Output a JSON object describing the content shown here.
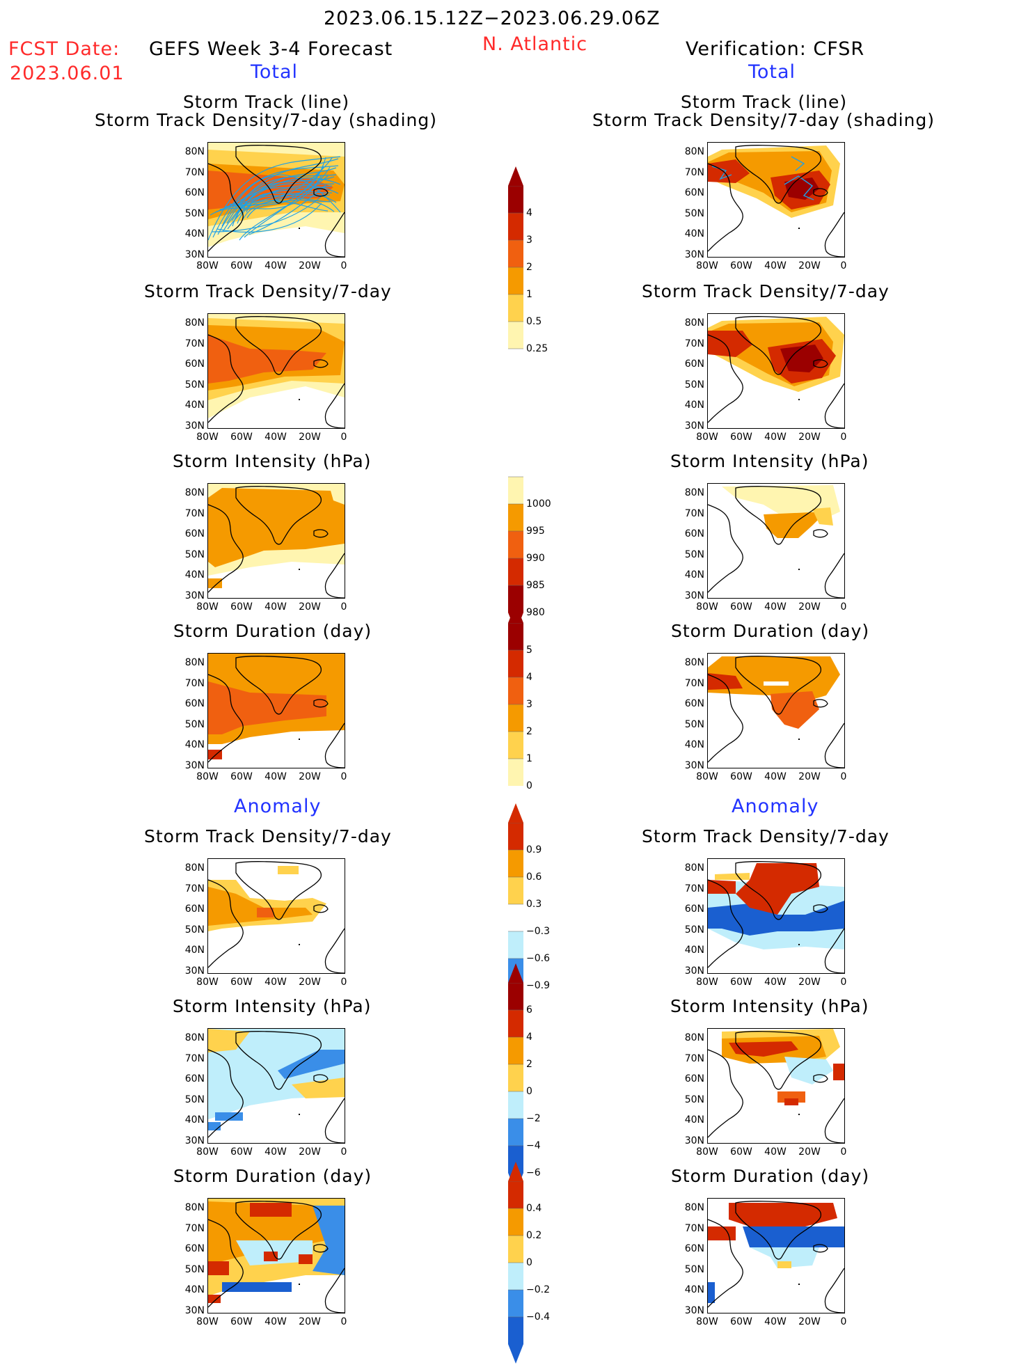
{
  "header": {
    "date_range": "2023.06.15.12Z−2023.06.29.06Z",
    "fcst_label": "FCST Date:",
    "fcst_date": "2023.06.01",
    "forecast_title": "GEFS Week 3-4 Forecast",
    "region": "N. Atlantic",
    "verification_title": "Verification: CFSR",
    "total_label": "Total",
    "anomaly_label": "Anomaly"
  },
  "panel_titles": {
    "track_line": "Storm Track (line)",
    "track_shading": "Storm Track Density/7-day (shading)",
    "density": "Storm Track Density/7-day",
    "intensity": "Storm Intensity (hPa)",
    "duration": "Storm Duration (day)"
  },
  "axes": {
    "lat_labels": [
      "80N",
      "70N",
      "60N",
      "50N",
      "40N",
      "30N"
    ],
    "lon_labels": [
      "80W",
      "60W",
      "40W",
      "20W",
      "0"
    ]
  },
  "colorbars": {
    "density": [
      "4",
      "3",
      "2",
      "1",
      "0.5",
      "0.25"
    ],
    "intensity": [
      "1000",
      "995",
      "990",
      "985",
      "980"
    ],
    "duration": [
      "5",
      "4",
      "3",
      "2",
      "1",
      "0"
    ],
    "density_anom": [
      "0.9",
      "0.6",
      "0.3",
      "−0.3",
      "−0.6",
      "−0.9"
    ],
    "intensity_anom": [
      "6",
      "4",
      "2",
      "0",
      "−2",
      "−4",
      "−6"
    ],
    "duration_anom": [
      "0.4",
      "0.2",
      "0",
      "−0.2",
      "−0.4"
    ]
  },
  "colors": {
    "title_red": "#ff2a2a",
    "label_blue": "#2233ff",
    "yellow_light": "#fff5b0",
    "yellow": "#ffd24d",
    "orange": "#f59a00",
    "orange_dark": "#f06010",
    "red": "#d42a00",
    "dark_red": "#9b0000",
    "blue_light": "#bfeefb",
    "blue": "#3a8ee8",
    "blue_dark": "#1a5fd0",
    "track_line": "#1ea0e6"
  }
}
